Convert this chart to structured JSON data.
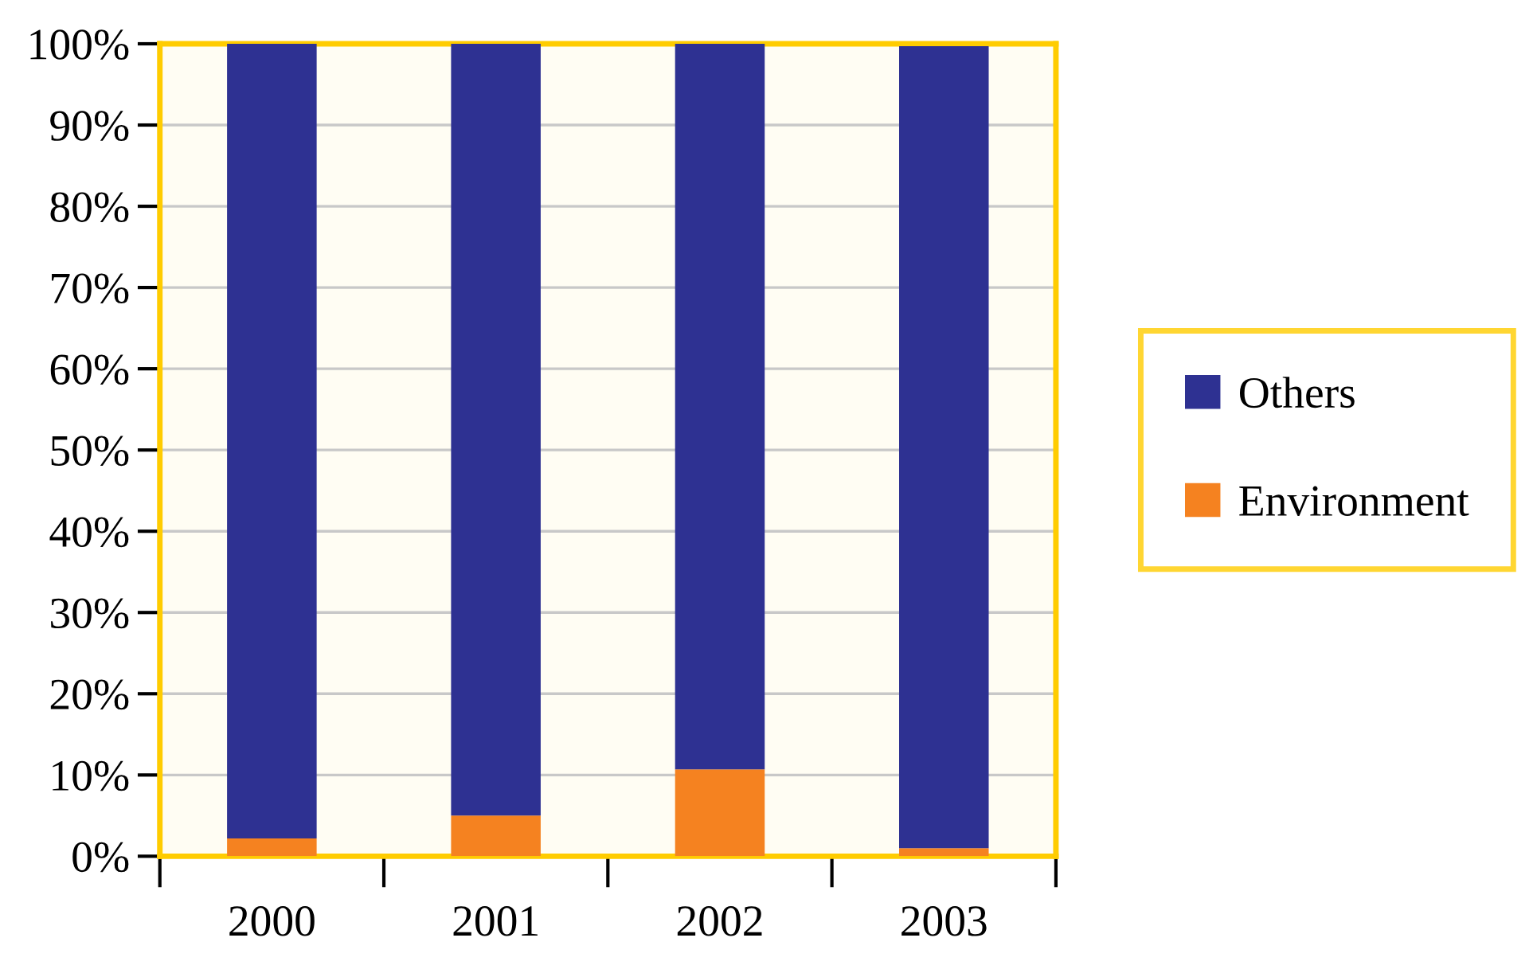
{
  "chart_data": {
    "type": "bar",
    "stacked": true,
    "categories": [
      "2000",
      "2001",
      "2002",
      "2003"
    ],
    "series": [
      {
        "name": "Environment",
        "color": "#f58220",
        "values": [
          2.2,
          5.0,
          10.7,
          1.0
        ]
      },
      {
        "name": "Others",
        "color": "#2e3192",
        "values": [
          97.8,
          95.0,
          89.3,
          98.7
        ]
      }
    ],
    "ylim": [
      0,
      100
    ],
    "yticks": [
      {
        "value": 0,
        "label": "0%"
      },
      {
        "value": 10,
        "label": "10%"
      },
      {
        "value": 20,
        "label": "20%"
      },
      {
        "value": 30,
        "label": "30%"
      },
      {
        "value": 40,
        "label": "40%"
      },
      {
        "value": 50,
        "label": "50%"
      },
      {
        "value": 60,
        "label": "60%"
      },
      {
        "value": 70,
        "label": "70%"
      },
      {
        "value": 80,
        "label": "80%"
      },
      {
        "value": 90,
        "label": "90%"
      },
      {
        "value": 100,
        "label": "100%"
      }
    ],
    "grid": "y",
    "legend": "right"
  }
}
